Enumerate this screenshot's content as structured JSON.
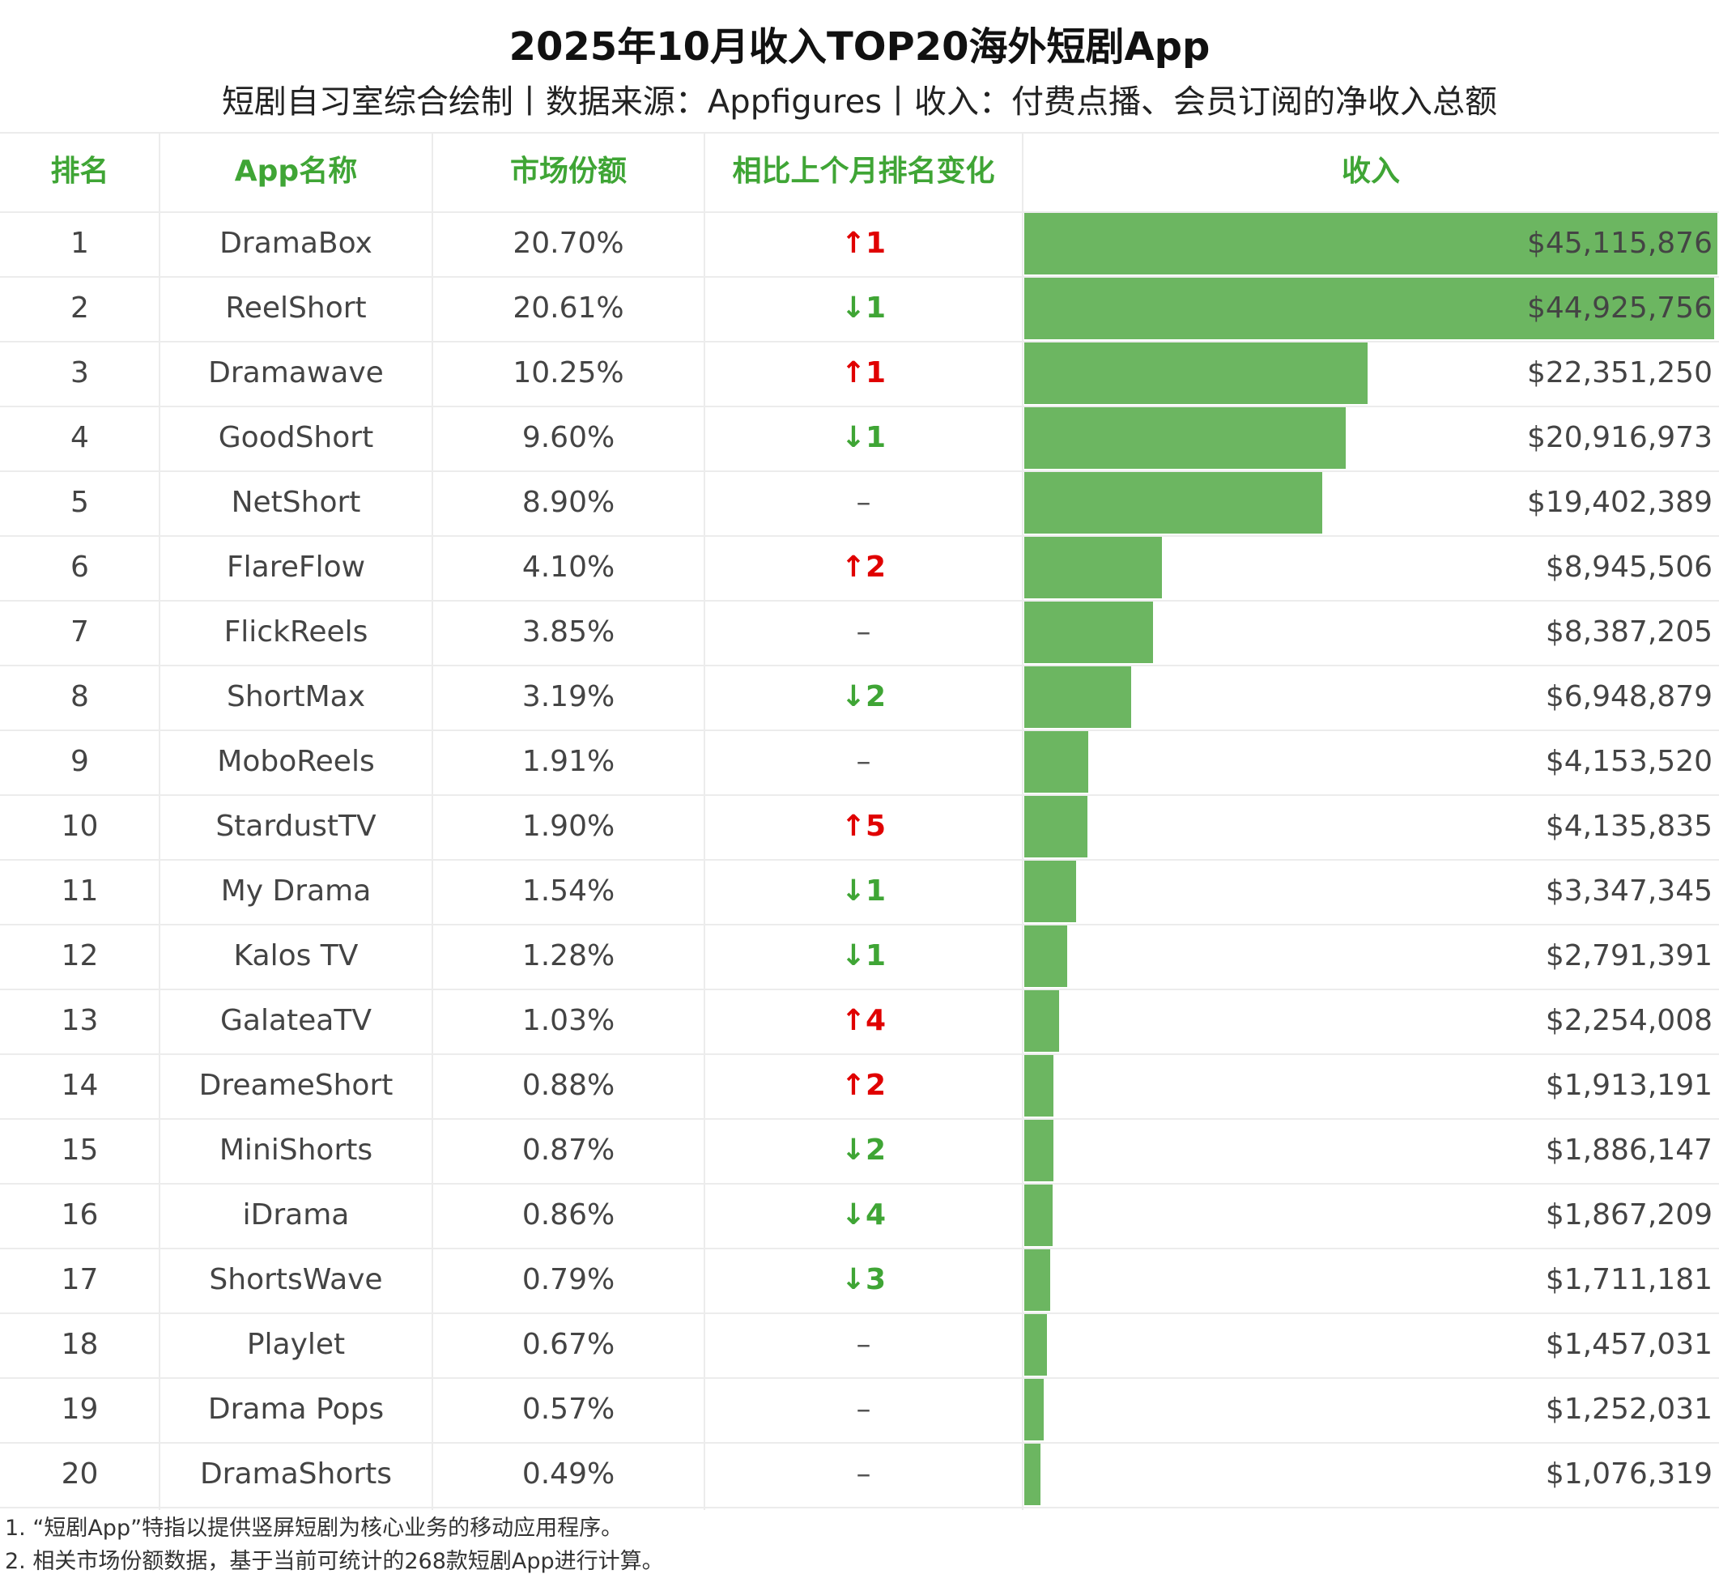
{
  "title": "2025年10月收入TOP20海外短剧App",
  "subtitle": "短剧自习室综合绘制丨数据来源：Appfigures丨收入：付费点播、会员订阅的净收入总额",
  "columns": {
    "rank": "排名",
    "app": "App名称",
    "share": "市场份额",
    "change": "相比上个月排名变化",
    "revenue": "收入"
  },
  "colors": {
    "header": "#3fa535",
    "bar": "#6cb661",
    "up": "#e00000",
    "down": "#3fa535"
  },
  "chart_data": {
    "type": "table",
    "title": "2025年10月收入TOP20海外短剧App",
    "rows": [
      {
        "rank": "1",
        "app": "DramaBox",
        "share": "20.70%",
        "change": "↑1",
        "dir": "up",
        "revenue_label": "$45,115,876",
        "revenue": 45115876
      },
      {
        "rank": "2",
        "app": "ReelShort",
        "share": "20.61%",
        "change": "↓1",
        "dir": "down",
        "revenue_label": "$44,925,756",
        "revenue": 44925756
      },
      {
        "rank": "3",
        "app": "Dramawave",
        "share": "10.25%",
        "change": "↑1",
        "dir": "up",
        "revenue_label": "$22,351,250",
        "revenue": 22351250
      },
      {
        "rank": "4",
        "app": "GoodShort",
        "share": "9.60%",
        "change": "↓1",
        "dir": "down",
        "revenue_label": "$20,916,973",
        "revenue": 20916973
      },
      {
        "rank": "5",
        "app": "NetShort",
        "share": "8.90%",
        "change": "–",
        "dir": "same",
        "revenue_label": "$19,402,389",
        "revenue": 19402389
      },
      {
        "rank": "6",
        "app": "FlareFlow",
        "share": "4.10%",
        "change": "↑2",
        "dir": "up",
        "revenue_label": "$8,945,506",
        "revenue": 8945506
      },
      {
        "rank": "7",
        "app": "FlickReels",
        "share": "3.85%",
        "change": "–",
        "dir": "same",
        "revenue_label": "$8,387,205",
        "revenue": 8387205
      },
      {
        "rank": "8",
        "app": "ShortMax",
        "share": "3.19%",
        "change": "↓2",
        "dir": "down",
        "revenue_label": "$6,948,879",
        "revenue": 6948879
      },
      {
        "rank": "9",
        "app": "MoboReels",
        "share": "1.91%",
        "change": "–",
        "dir": "same",
        "revenue_label": "$4,153,520",
        "revenue": 4153520
      },
      {
        "rank": "10",
        "app": "StardustTV",
        "share": "1.90%",
        "change": "↑5",
        "dir": "up",
        "revenue_label": "$4,135,835",
        "revenue": 4135835
      },
      {
        "rank": "11",
        "app": "My Drama",
        "share": "1.54%",
        "change": "↓1",
        "dir": "down",
        "revenue_label": "$3,347,345",
        "revenue": 3347345
      },
      {
        "rank": "12",
        "app": "Kalos TV",
        "share": "1.28%",
        "change": "↓1",
        "dir": "down",
        "revenue_label": "$2,791,391",
        "revenue": 2791391
      },
      {
        "rank": "13",
        "app": "GalateaTV",
        "share": "1.03%",
        "change": "↑4",
        "dir": "up",
        "revenue_label": "$2,254,008",
        "revenue": 2254008
      },
      {
        "rank": "14",
        "app": "DreameShort",
        "share": "0.88%",
        "change": "↑2",
        "dir": "up",
        "revenue_label": "$1,913,191",
        "revenue": 1913191
      },
      {
        "rank": "15",
        "app": "MiniShorts",
        "share": "0.87%",
        "change": "↓2",
        "dir": "down",
        "revenue_label": "$1,886,147",
        "revenue": 1886147
      },
      {
        "rank": "16",
        "app": "iDrama",
        "share": "0.86%",
        "change": "↓4",
        "dir": "down",
        "revenue_label": "$1,867,209",
        "revenue": 1867209
      },
      {
        "rank": "17",
        "app": "ShortsWave",
        "share": "0.79%",
        "change": "↓3",
        "dir": "down",
        "revenue_label": "$1,711,181",
        "revenue": 1711181
      },
      {
        "rank": "18",
        "app": "Playlet",
        "share": "0.67%",
        "change": "–",
        "dir": "same",
        "revenue_label": "$1,457,031",
        "revenue": 1457031
      },
      {
        "rank": "19",
        "app": "Drama Pops",
        "share": "0.57%",
        "change": "–",
        "dir": "same",
        "revenue_label": "$1,252,031",
        "revenue": 1252031
      },
      {
        "rank": "20",
        "app": "DramaShorts",
        "share": "0.49%",
        "change": "–",
        "dir": "same",
        "revenue_label": "$1,076,319",
        "revenue": 1076319
      }
    ]
  },
  "notes": [
    "1. “短剧App”特指以提供竖屏短剧为核心业务的移动应用程序。",
    "2. 相关市场份额数据，基于当前可统计的268款短剧App进行计算。"
  ]
}
